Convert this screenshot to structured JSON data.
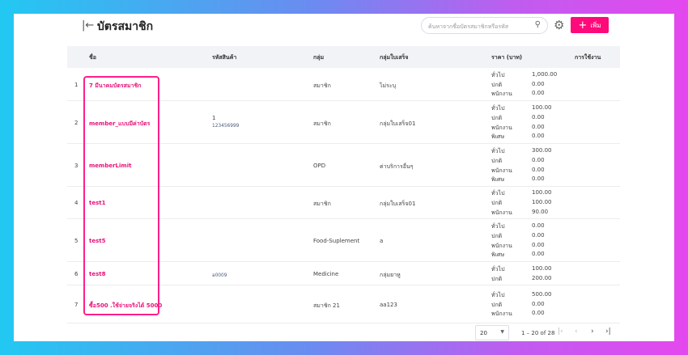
{
  "header": {
    "title": "บัตรสมาชิก",
    "search_placeholder": "ค้นหาจากชื่อบัตรสมาชิกหรือรหัส",
    "add_label": "เพิ่ม"
  },
  "table": {
    "columns": [
      "ชื่อ",
      "รหัสสินค้า",
      "กลุ่ม",
      "กลุ่มใบเสร็จ",
      "ราคา (บาท)",
      "การใช้งาน"
    ],
    "rows": [
      {
        "no": "1",
        "name": "7 มีนาคมบัตรสมาชิก",
        "code": "",
        "code_sub": "",
        "group": "สมาชิก",
        "receipt": "ไม่ระบุ",
        "prices": [
          [
            "ทั่วไป",
            "1,000.00"
          ],
          [
            "ปกติ",
            "0.00"
          ],
          [
            "พนักงาน",
            "0.00"
          ]
        ]
      },
      {
        "no": "2",
        "name": "member_แบบมีค่าบัตร",
        "code": "1",
        "code_sub": "123456999",
        "group": "สมาชิก",
        "receipt": "กลุ่มใบเสร็จ01",
        "prices": [
          [
            "ทั่วไป",
            "100.00"
          ],
          [
            "ปกติ",
            "0.00"
          ],
          [
            "พนักงาน",
            "0.00"
          ],
          [
            "พิเศษ",
            "0.00"
          ]
        ]
      },
      {
        "no": "3",
        "name": "memberLimit",
        "code": "",
        "code_sub": "",
        "group": "OPD",
        "receipt": "ค่าบริการอื่นๆ",
        "prices": [
          [
            "ทั่วไป",
            "300.00"
          ],
          [
            "ปกติ",
            "0.00"
          ],
          [
            "พนักงาน",
            "0.00"
          ],
          [
            "พิเศษ",
            "0.00"
          ]
        ]
      },
      {
        "no": "4",
        "name": "test1",
        "code": "",
        "code_sub": "",
        "group": "สมาชิก",
        "receipt": "กลุ่มใบเสร็จ01",
        "prices": [
          [
            "ทั่วไป",
            "100.00"
          ],
          [
            "ปกติ",
            "100.00"
          ],
          [
            "พนักงาน",
            "90.00"
          ]
        ]
      },
      {
        "no": "5",
        "name": "test5",
        "code": "",
        "code_sub": "",
        "group": "Food-Suplement",
        "receipt": "a",
        "prices": [
          [
            "ทั่วไป",
            "0.00"
          ],
          [
            "ปกติ",
            "0.00"
          ],
          [
            "พนักงาน",
            "0.00"
          ],
          [
            "พิเศษ",
            "0.00"
          ]
        ]
      },
      {
        "no": "6",
        "name": "test8",
        "code": "",
        "code_sub": "a0009",
        "group": "Medicine",
        "receipt": "กลุ่มยาหู",
        "prices": [
          [
            "ทั่วไป",
            "100.00"
          ],
          [
            "ปกติ",
            "200.00"
          ]
        ]
      },
      {
        "no": "7",
        "name": "ซื้อ500 .ใช้จ่ายจริงได้ 5000",
        "code": "",
        "code_sub": "",
        "group": "สมาชิก 21",
        "receipt": "aa123",
        "prices": [
          [
            "ทั่วไป",
            "500.00"
          ],
          [
            "ปกติ",
            "0.00"
          ],
          [
            "พนักงาน",
            "0.00"
          ]
        ]
      }
    ]
  },
  "pagination": {
    "page_size": "20",
    "range": "1 – 20 of 28"
  },
  "colors": {
    "accent": "#ff0a7a",
    "highlight": "#ff1f8a"
  }
}
